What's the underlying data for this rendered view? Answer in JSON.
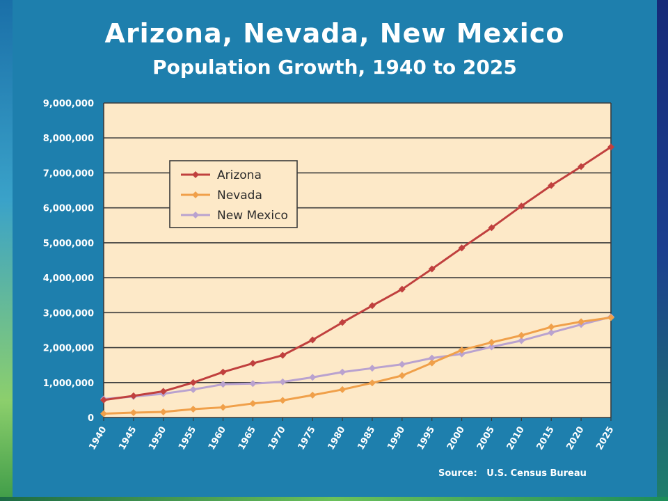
{
  "chart_data": {
    "type": "line",
    "title": "Arizona, Nevada, New Mexico",
    "subtitle": "Population Growth, 1940 to 2025",
    "xlabel": "",
    "ylabel": "",
    "x": [
      1940,
      1945,
      1950,
      1955,
      1960,
      1965,
      1970,
      1975,
      1980,
      1985,
      1990,
      1995,
      2000,
      2005,
      2010,
      2015,
      2020,
      2025
    ],
    "x_tick_labels": [
      "1940",
      "1945",
      "1950",
      "1955",
      "1960",
      "1965",
      "1970",
      "1975",
      "1980",
      "1985",
      "1990",
      "1995",
      "2000",
      "2005",
      "2010",
      "2015",
      "2020",
      "2025"
    ],
    "ylim": [
      0,
      9000000
    ],
    "y_ticks": [
      0,
      1000000,
      2000000,
      3000000,
      4000000,
      5000000,
      6000000,
      7000000,
      8000000,
      9000000
    ],
    "y_tick_labels": [
      "0",
      "1,000,000",
      "2,000,000",
      "3,000,000",
      "4,000,000",
      "5,000,000",
      "6,000,000",
      "7,000,000",
      "8,000,000",
      "9,000,000"
    ],
    "grid": true,
    "legend_position": "top-left",
    "series": [
      {
        "name": "Arizona",
        "color": "#c0403e",
        "values": [
          500000,
          620000,
          750000,
          1000000,
          1300000,
          1550000,
          1780000,
          2220000,
          2720000,
          3200000,
          3670000,
          4250000,
          4850000,
          5430000,
          6050000,
          6640000,
          7180000,
          7740000
        ]
      },
      {
        "name": "Nevada",
        "color": "#f0a04a",
        "values": [
          110000,
          140000,
          160000,
          240000,
          290000,
          400000,
          490000,
          640000,
          800000,
          990000,
          1200000,
          1560000,
          1930000,
          2150000,
          2350000,
          2590000,
          2740000,
          2860000
        ]
      },
      {
        "name": "New Mexico",
        "color": "#b9a2cf",
        "values": [
          530000,
          600000,
          680000,
          800000,
          950000,
          970000,
          1020000,
          1150000,
          1300000,
          1410000,
          1520000,
          1700000,
          1820000,
          2020000,
          2200000,
          2430000,
          2660000,
          2880000
        ]
      }
    ]
  },
  "footer": {
    "source_label": "Source:",
    "source_value": "U.S. Census Bureau"
  },
  "colors": {
    "panel": "#1e7fad",
    "plot_background": "#fde9c8",
    "grid": "#3b3b3b"
  }
}
